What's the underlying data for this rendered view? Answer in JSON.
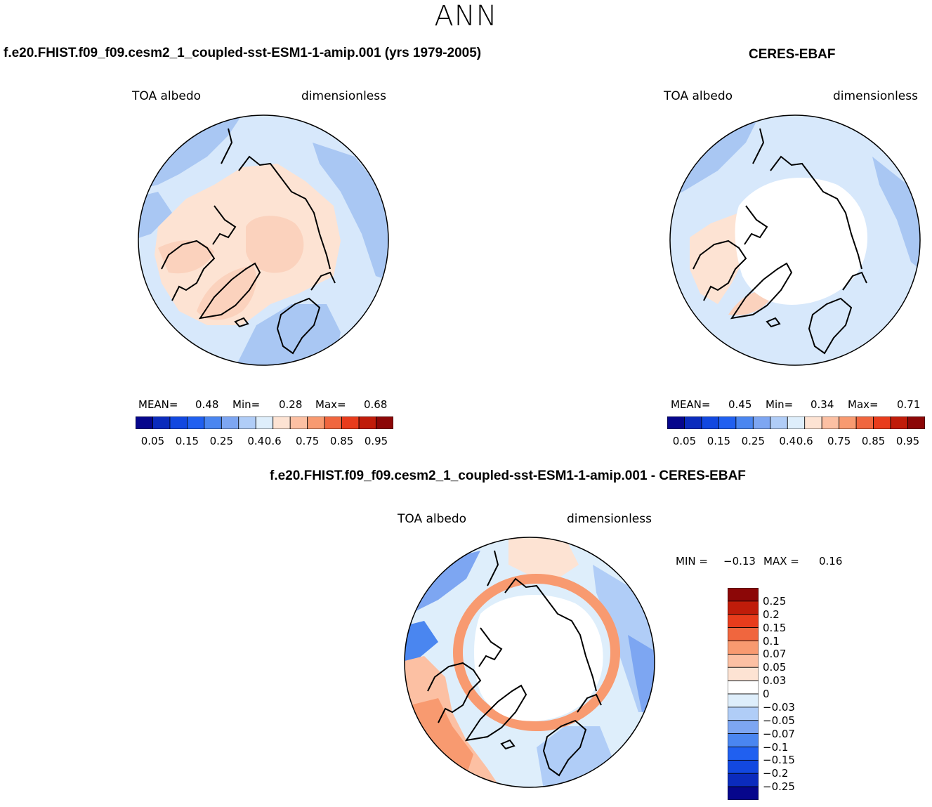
{
  "season": "ANN",
  "colors": {
    "land_outline": "#000000",
    "abs_palette": [
      "#06068c",
      "#0b2bbd",
      "#1248e0",
      "#2060f0",
      "#4a86f0",
      "#7da6f2",
      "#b0cdf7",
      "#deeefb",
      "#fde3d3",
      "#fcc0a3",
      "#f89a70",
      "#f0663e",
      "#e83c1c",
      "#c01c0a",
      "#8c0707"
    ],
    "diff_palette": [
      "#06068c",
      "#0b2bbd",
      "#1248e0",
      "#2060f0",
      "#4a86f0",
      "#7da6f2",
      "#b0cdf7",
      "#deeefb",
      "#ffffff",
      "#fde3d3",
      "#fcc0a3",
      "#f89a70",
      "#f0663e",
      "#e83c1c",
      "#c01c0a",
      "#8c0707"
    ]
  },
  "panels": {
    "model": {
      "title": "f.e20.FHIST.f09_f09.cesm2_1_coupled-sst-ESM1-1-amip.001 (yrs 1979-2005)",
      "left_label": "TOA albedo",
      "right_label": "dimensionless",
      "mean_label": "MEAN=",
      "mean_value": "0.48",
      "min_label": "Min=",
      "min_value": "0.28",
      "max_label": "Max=",
      "max_value": "0.68"
    },
    "obs": {
      "title": "CERES-EBAF",
      "left_label": "TOA albedo",
      "right_label": "dimensionless",
      "mean_label": "MEAN=",
      "mean_value": "0.45",
      "min_label": "Min=",
      "min_value": "0.34",
      "max_label": "Max=",
      "max_value": "0.71"
    },
    "diff": {
      "title": "f.e20.FHIST.f09_f09.cesm2_1_coupled-sst-ESM1-1-amip.001 - CERES-EBAF",
      "left_label": "TOA albedo",
      "right_label": "dimensionless",
      "min_label": "MIN =",
      "min_value": "−0.13",
      "max_label": "MAX =",
      "max_value": "0.16"
    }
  },
  "abs_colorbar_labels": [
    "0.05",
    "0.15",
    "0.25",
    "0.4",
    "0.6",
    "0.75",
    "0.85",
    "0.95"
  ],
  "diff_colorbar_labels": [
    "0.25",
    "0.2",
    "0.15",
    "0.1",
    "0.07",
    "0.05",
    "0.03",
    "0",
    "−0.03",
    "−0.05",
    "−0.07",
    "−0.1",
    "−0.15",
    "−0.2",
    "−0.25"
  ]
}
